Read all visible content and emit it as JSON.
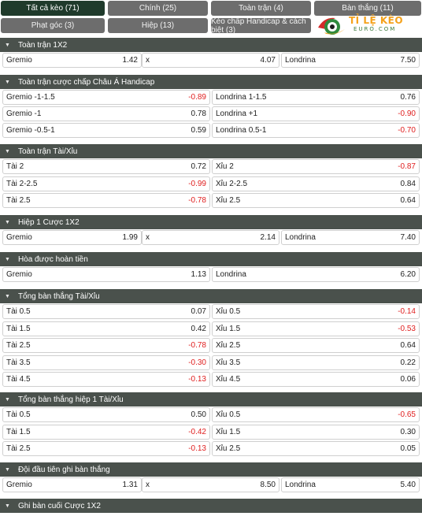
{
  "tabs": [
    {
      "label": "Tất cả kèo (71)",
      "active": true
    },
    {
      "label": "Chính (25)"
    },
    {
      "label": "Toàn trận (4)"
    },
    {
      "label": "Bàn thắng (11)"
    },
    {
      "label": "Phạt góc (3)"
    },
    {
      "label": "Hiệp (13)"
    },
    {
      "label": "Kèo chấp Handicap & cách biệt (3)"
    }
  ],
  "logo": {
    "main": "TỈ LỆ KÈO",
    "sub": "EURO.COM"
  },
  "sections": [
    {
      "title": "Toàn trận 1X2",
      "rows": [
        [
          [
            "Gremio",
            "1.42"
          ],
          [
            "x",
            "4.07"
          ],
          [
            "Londrina",
            "7.50"
          ]
        ]
      ]
    },
    {
      "title": "Toàn trận cược chấp Châu Á Handicap",
      "rows": [
        [
          [
            "Gremio -1-1.5",
            "-0.89"
          ],
          [
            "Londrina 1-1.5",
            "0.76"
          ]
        ],
        [
          [
            "Gremio -1",
            "0.78"
          ],
          [
            "Londrina +1",
            "-0.90"
          ]
        ],
        [
          [
            "Gremio -0.5-1",
            "0.59"
          ],
          [
            "Londrina 0.5-1",
            "-0.70"
          ]
        ]
      ]
    },
    {
      "title": "Toàn trận Tài/Xỉu",
      "rows": [
        [
          [
            "Tài 2",
            "0.72"
          ],
          [
            "Xỉu 2",
            "-0.87"
          ]
        ],
        [
          [
            "Tài 2-2.5",
            "-0.99"
          ],
          [
            "Xỉu 2-2.5",
            "0.84"
          ]
        ],
        [
          [
            "Tài 2.5",
            "-0.78"
          ],
          [
            "Xỉu 2.5",
            "0.64"
          ]
        ]
      ]
    },
    {
      "title": "Hiệp 1 Cược 1X2",
      "rows": [
        [
          [
            "Gremio",
            "1.99"
          ],
          [
            "x",
            "2.14"
          ],
          [
            "Londrina",
            "7.40"
          ]
        ]
      ]
    },
    {
      "title": "Hòa được hoàn tiền",
      "rows": [
        [
          [
            "Gremio",
            "1.13"
          ],
          [
            "Londrina",
            "6.20"
          ]
        ]
      ]
    },
    {
      "title": "Tổng bàn thắng Tài/Xỉu",
      "rows": [
        [
          [
            "Tài 0.5",
            "0.07"
          ],
          [
            "Xỉu 0.5",
            "-0.14"
          ]
        ],
        [
          [
            "Tài 1.5",
            "0.42"
          ],
          [
            "Xỉu 1.5",
            "-0.53"
          ]
        ],
        [
          [
            "Tài 2.5",
            "-0.78"
          ],
          [
            "Xỉu 2.5",
            "0.64"
          ]
        ],
        [
          [
            "Tài 3.5",
            "-0.30"
          ],
          [
            "Xỉu 3.5",
            "0.22"
          ]
        ],
        [
          [
            "Tài 4.5",
            "-0.13"
          ],
          [
            "Xỉu 4.5",
            "0.06"
          ]
        ]
      ]
    },
    {
      "title": "Tổng bàn thắng hiệp 1 Tài/Xỉu",
      "rows": [
        [
          [
            "Tài 0.5",
            "0.50"
          ],
          [
            "Xỉu 0.5",
            "-0.65"
          ]
        ],
        [
          [
            "Tài 1.5",
            "-0.42"
          ],
          [
            "Xỉu 1.5",
            "0.30"
          ]
        ],
        [
          [
            "Tài 2.5",
            "-0.13"
          ],
          [
            "Xỉu 2.5",
            "0.05"
          ]
        ]
      ]
    },
    {
      "title": "Đội đầu tiên ghi bàn thắng",
      "rows": [
        [
          [
            "Gremio",
            "1.31"
          ],
          [
            "x",
            "8.50"
          ],
          [
            "Londrina",
            "5.40"
          ]
        ]
      ]
    },
    {
      "title": "Ghi bàn cuối Cược 1X2",
      "rows": []
    }
  ]
}
